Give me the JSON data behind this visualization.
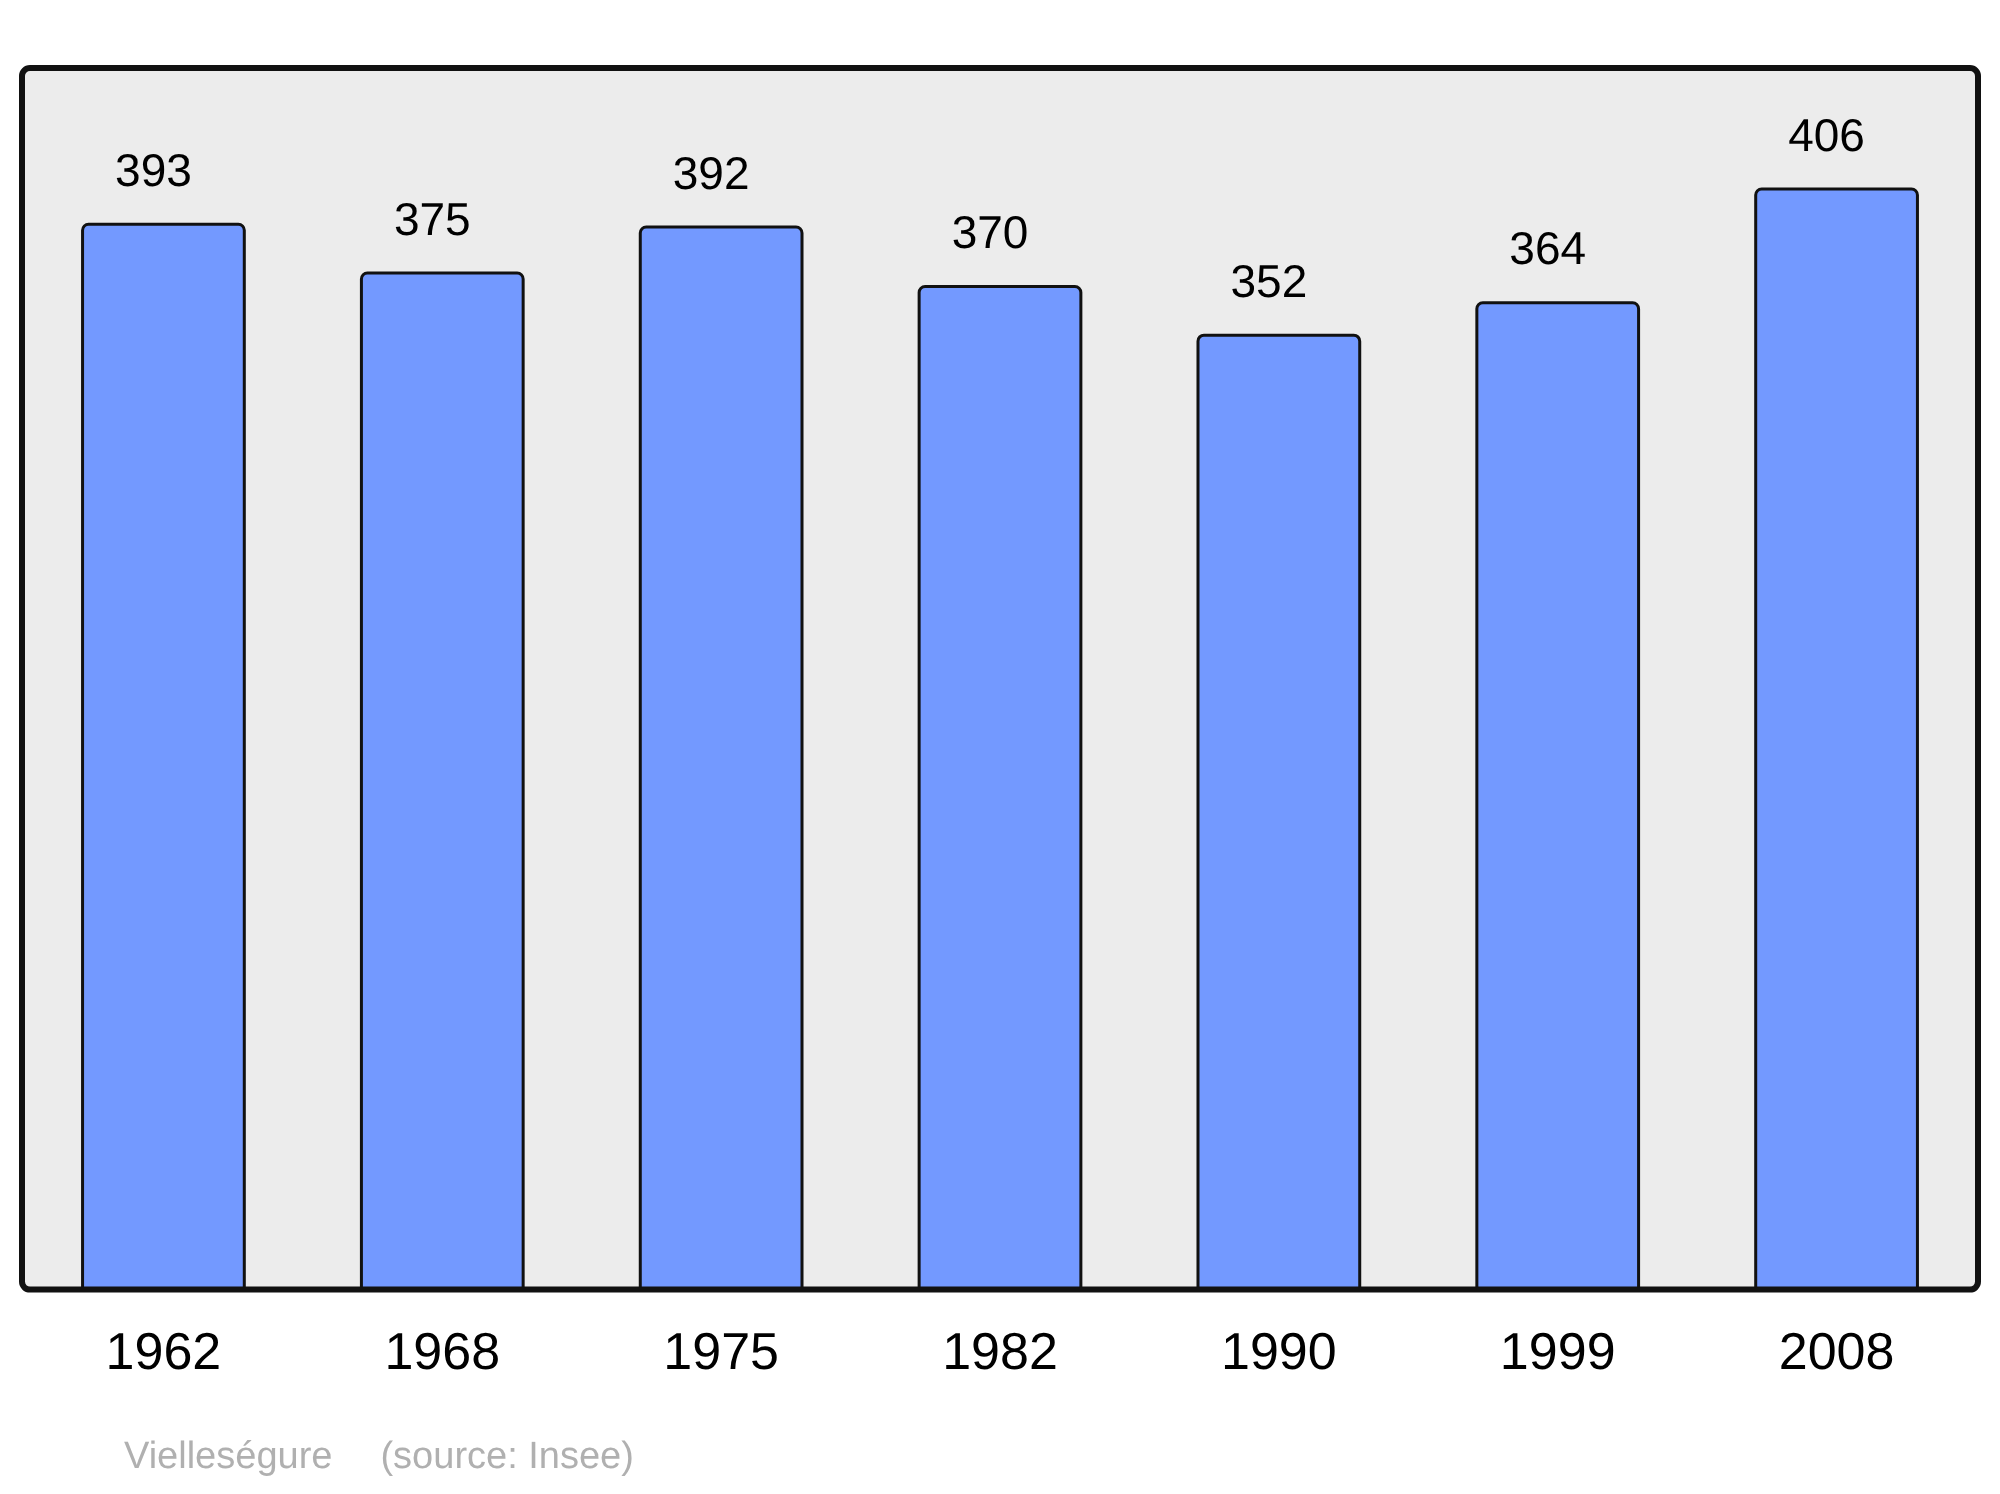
{
  "chart_data": {
    "type": "bar",
    "categories": [
      "1962",
      "1968",
      "1975",
      "1982",
      "1990",
      "1999",
      "2008"
    ],
    "values": [
      393,
      375,
      392,
      370,
      352,
      364,
      406
    ],
    "color": "#7399ff",
    "data_labels": true,
    "grid": false,
    "legend": false,
    "annotations": [
      "Vielleségure",
      "(source: Insee)"
    ]
  }
}
